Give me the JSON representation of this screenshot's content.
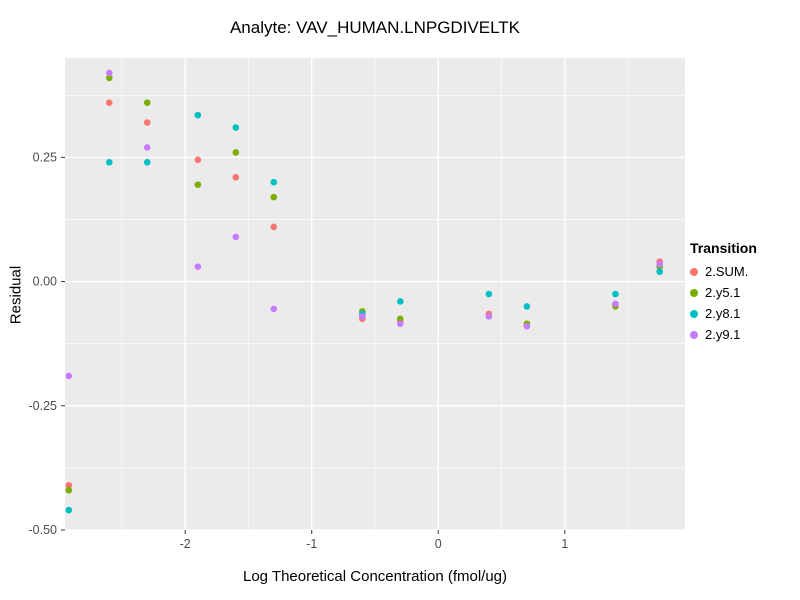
{
  "chart_data": {
    "type": "scatter",
    "title": "Analyte: VAV_HUMAN.LNPGDIVELTK",
    "xlabel": "Log Theoretical Concentration (fmol/ug)",
    "ylabel": "Residual",
    "xlim": [
      -2.95,
      1.95
    ],
    "ylim": [
      -0.5,
      0.45
    ],
    "x_ticks": [
      -2,
      -1,
      0,
      1
    ],
    "x_tick_labels": [
      "-2",
      "-1",
      "0",
      "1"
    ],
    "y_ticks": [
      -0.5,
      -0.25,
      0,
      0.25
    ],
    "y_tick_labels": [
      "-0.50",
      "-0.25",
      "0.00",
      "0.25"
    ],
    "grid": true,
    "panel_bg": "#EBEBEB",
    "grid_color": "#FFFFFF",
    "tick_label_color": "#4D4D4D",
    "legend_title": "Transition",
    "legend_position": "right",
    "series": [
      {
        "name": "2.SUM.",
        "color": "#F8766D",
        "points": [
          [
            -2.92,
            -0.41
          ],
          [
            -2.6,
            0.36
          ],
          [
            -2.3,
            0.32
          ],
          [
            -1.9,
            0.245
          ],
          [
            -1.6,
            0.21
          ],
          [
            -1.3,
            0.11
          ],
          [
            -0.6,
            -0.075
          ],
          [
            -0.3,
            -0.08
          ],
          [
            0.4,
            -0.065
          ],
          [
            0.7,
            -0.085
          ],
          [
            1.4,
            -0.045
          ],
          [
            1.75,
            0.04
          ]
        ]
      },
      {
        "name": "2.y5.1",
        "color": "#7CAE00",
        "points": [
          [
            -2.92,
            -0.42
          ],
          [
            -2.6,
            0.41
          ],
          [
            -2.3,
            0.36
          ],
          [
            -1.9,
            0.195
          ],
          [
            -1.6,
            0.26
          ],
          [
            -1.3,
            0.17
          ],
          [
            -0.6,
            -0.06
          ],
          [
            -0.3,
            -0.075
          ],
          [
            0.4,
            -0.07
          ],
          [
            0.7,
            -0.085
          ],
          [
            1.4,
            -0.05
          ],
          [
            1.75,
            0.03
          ]
        ]
      },
      {
        "name": "2.y8.1",
        "color": "#00BFC4",
        "points": [
          [
            -2.92,
            -0.46
          ],
          [
            -2.6,
            0.24
          ],
          [
            -2.3,
            0.24
          ],
          [
            -1.9,
            0.335
          ],
          [
            -1.6,
            0.31
          ],
          [
            -1.3,
            0.2
          ],
          [
            -0.6,
            -0.065
          ],
          [
            -0.3,
            -0.04
          ],
          [
            0.4,
            -0.025
          ],
          [
            0.7,
            -0.05
          ],
          [
            1.4,
            -0.025
          ],
          [
            1.75,
            0.02
          ]
        ]
      },
      {
        "name": "2.y9.1",
        "color": "#C77CFF",
        "points": [
          [
            -2.92,
            -0.19
          ],
          [
            -2.6,
            0.42
          ],
          [
            -2.3,
            0.27
          ],
          [
            -1.9,
            0.03
          ],
          [
            -1.6,
            0.09
          ],
          [
            -1.3,
            -0.055
          ],
          [
            -0.6,
            -0.07
          ],
          [
            -0.3,
            -0.085
          ],
          [
            0.4,
            -0.07
          ],
          [
            0.7,
            -0.09
          ],
          [
            1.4,
            -0.045
          ],
          [
            1.75,
            0.035
          ]
        ]
      }
    ]
  }
}
